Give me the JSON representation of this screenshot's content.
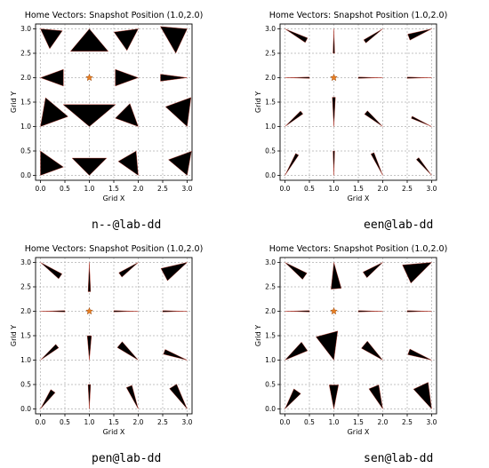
{
  "chart_data": [
    {
      "type": "quiver",
      "title": "Home Vectors: Snapshot Position (1.0,2.0)",
      "xlabel": "Grid X",
      "ylabel": "Grid Y",
      "xlim": [
        -0.1,
        3.1
      ],
      "ylim": [
        -0.1,
        3.1
      ],
      "xticks": [
        "0.0",
        "0.5",
        "1.0",
        "1.5",
        "2.0",
        "2.5",
        "3.0"
      ],
      "yticks": [
        "0.0",
        "0.5",
        "1.0",
        "1.5",
        "2.0",
        "2.5",
        "3.0"
      ],
      "grid": true,
      "caption": "n--@lab-dd",
      "snapshot": [
        1.0,
        2.0
      ],
      "points": [
        [
          0,
          0
        ],
        [
          0,
          1
        ],
        [
          0,
          2
        ],
        [
          0,
          3
        ],
        [
          1,
          0
        ],
        [
          1,
          1
        ],
        [
          1,
          3
        ],
        [
          2,
          0
        ],
        [
          2,
          1
        ],
        [
          2,
          2
        ],
        [
          2,
          3
        ],
        [
          3,
          0
        ],
        [
          3,
          1
        ],
        [
          3,
          2
        ],
        [
          3,
          3
        ]
      ],
      "fans": [
        {
          "x": 0,
          "y": 3,
          "a": -35,
          "s": 60,
          "l": 0.45
        },
        {
          "x": 1,
          "y": 3,
          "a": -90,
          "s": 80,
          "l": 0.6
        },
        {
          "x": 2,
          "y": 3,
          "a": -145,
          "s": 55,
          "l": 0.5
        },
        {
          "x": 3,
          "y": 3,
          "a": -150,
          "s": 70,
          "l": 0.55
        },
        {
          "x": 0,
          "y": 2,
          "a": 0,
          "s": 40,
          "l": 0.5
        },
        {
          "x": 2,
          "y": 2,
          "a": 180,
          "s": 40,
          "l": 0.5
        },
        {
          "x": 3,
          "y": 2,
          "a": 180,
          "s": 15,
          "l": 0.55
        },
        {
          "x": 0,
          "y": 1,
          "a": 50,
          "s": 60,
          "l": 0.6
        },
        {
          "x": 1,
          "y": 1,
          "a": 90,
          "s": 100,
          "l": 0.7
        },
        {
          "x": 2,
          "y": 1,
          "a": 135,
          "s": 50,
          "l": 0.5
        },
        {
          "x": 3,
          "y": 1,
          "a": 110,
          "s": 55,
          "l": 0.6
        },
        {
          "x": 0,
          "y": 0,
          "a": 55,
          "s": 70,
          "l": 0.5
        },
        {
          "x": 1,
          "y": 0,
          "a": 90,
          "s": 90,
          "l": 0.5
        },
        {
          "x": 2,
          "y": 0,
          "a": 120,
          "s": 50,
          "l": 0.5
        },
        {
          "x": 3,
          "y": 0,
          "a": 110,
          "s": 60,
          "l": 0.5
        }
      ]
    },
    {
      "type": "quiver",
      "title": "Home Vectors: Snapshot Position (1.0,2.0)",
      "xlabel": "Grid X",
      "ylabel": "Grid Y",
      "xlim": [
        -0.1,
        3.1
      ],
      "ylim": [
        -0.1,
        3.1
      ],
      "xticks": [
        "0.0",
        "0.5",
        "1.0",
        "1.5",
        "2.0",
        "2.5",
        "3.0"
      ],
      "yticks": [
        "0.0",
        "0.5",
        "1.0",
        "1.5",
        "2.0",
        "2.5",
        "3.0"
      ],
      "grid": true,
      "caption": "een@lab-dd",
      "snapshot": [
        1.0,
        2.0
      ],
      "fans": [
        {
          "x": 0,
          "y": 3,
          "a": -28,
          "s": 12,
          "l": 0.5
        },
        {
          "x": 1,
          "y": 3,
          "a": -90,
          "s": 4,
          "l": 0.5
        },
        {
          "x": 2,
          "y": 3,
          "a": -145,
          "s": 10,
          "l": 0.45
        },
        {
          "x": 3,
          "y": 3,
          "a": -160,
          "s": 15,
          "l": 0.5
        },
        {
          "x": 0,
          "y": 2,
          "a": 0,
          "s": 3,
          "l": 0.5
        },
        {
          "x": 2,
          "y": 2,
          "a": 180,
          "s": 3,
          "l": 0.5
        },
        {
          "x": 3,
          "y": 2,
          "a": 180,
          "s": 3,
          "l": 0.5
        },
        {
          "x": 0,
          "y": 1,
          "a": 40,
          "s": 10,
          "l": 0.45
        },
        {
          "x": 1,
          "y": 1,
          "a": 90,
          "s": 6,
          "l": 0.6
        },
        {
          "x": 2,
          "y": 1,
          "a": 140,
          "s": 12,
          "l": 0.45
        },
        {
          "x": 3,
          "y": 1,
          "a": 155,
          "s": 6,
          "l": 0.45
        },
        {
          "x": 0,
          "y": 0,
          "a": 60,
          "s": 8,
          "l": 0.5
        },
        {
          "x": 1,
          "y": 0,
          "a": 90,
          "s": 4,
          "l": 0.5
        },
        {
          "x": 2,
          "y": 0,
          "a": 115,
          "s": 8,
          "l": 0.5
        },
        {
          "x": 3,
          "y": 0,
          "a": 130,
          "s": 8,
          "l": 0.45
        }
      ]
    },
    {
      "type": "quiver",
      "title": "Home Vectors: Snapshot Position (1.0,2.0)",
      "xlabel": "Grid X",
      "ylabel": "Grid Y",
      "xlim": [
        -0.1,
        3.1
      ],
      "ylim": [
        -0.1,
        3.1
      ],
      "xticks": [
        "0.0",
        "0.5",
        "1.0",
        "1.5",
        "2.0",
        "2.5",
        "3.0"
      ],
      "yticks": [
        "0.0",
        "0.5",
        "1.0",
        "1.5",
        "2.0",
        "2.5",
        "3.0"
      ],
      "grid": true,
      "caption": "pen@lab-dd",
      "snapshot": [
        1.0,
        2.0
      ],
      "fans": [
        {
          "x": 0,
          "y": 3,
          "a": -35,
          "s": 14,
          "l": 0.5
        },
        {
          "x": 1,
          "y": 3,
          "a": -90,
          "s": 5,
          "l": 0.6
        },
        {
          "x": 2,
          "y": 3,
          "a": -145,
          "s": 14,
          "l": 0.45
        },
        {
          "x": 3,
          "y": 3,
          "a": -152,
          "s": 30,
          "l": 0.55
        },
        {
          "x": 0,
          "y": 2,
          "a": 0,
          "s": 3,
          "l": 0.5
        },
        {
          "x": 2,
          "y": 2,
          "a": 180,
          "s": 3,
          "l": 0.5
        },
        {
          "x": 3,
          "y": 2,
          "a": 180,
          "s": 3,
          "l": 0.5
        },
        {
          "x": 0,
          "y": 1,
          "a": 40,
          "s": 12,
          "l": 0.45
        },
        {
          "x": 1,
          "y": 1,
          "a": 90,
          "s": 10,
          "l": 0.5
        },
        {
          "x": 2,
          "y": 1,
          "a": 140,
          "s": 18,
          "l": 0.5
        },
        {
          "x": 3,
          "y": 1,
          "a": 160,
          "s": 12,
          "l": 0.5
        },
        {
          "x": 0,
          "y": 0,
          "a": 55,
          "s": 14,
          "l": 0.45
        },
        {
          "x": 1,
          "y": 0,
          "a": 90,
          "s": 6,
          "l": 0.5
        },
        {
          "x": 2,
          "y": 0,
          "a": 112,
          "s": 14,
          "l": 0.5
        },
        {
          "x": 3,
          "y": 0,
          "a": 122,
          "s": 18,
          "l": 0.55
        }
      ]
    },
    {
      "type": "quiver",
      "title": "Home Vectors: Snapshot Position (1.0,2.0)",
      "xlabel": "Grid X",
      "ylabel": "Grid Y",
      "xlim": [
        -0.1,
        3.1
      ],
      "ylim": [
        -0.1,
        3.1
      ],
      "xticks": [
        "0.0",
        "0.5",
        "1.0",
        "1.5",
        "2.0",
        "2.5",
        "3.0"
      ],
      "yticks": [
        "0.0",
        "0.5",
        "1.0",
        "1.5",
        "2.0",
        "2.5",
        "3.0"
      ],
      "grid": true,
      "caption": "sen@lab-dd",
      "snapshot": [
        1.0,
        2.0
      ],
      "fans": [
        {
          "x": 0,
          "y": 3,
          "a": -35,
          "s": 18,
          "l": 0.5
        },
        {
          "x": 1,
          "y": 3,
          "a": -85,
          "s": 22,
          "l": 0.55
        },
        {
          "x": 2,
          "y": 3,
          "a": -145,
          "s": 18,
          "l": 0.45
        },
        {
          "x": 3,
          "y": 3,
          "a": -155,
          "s": 40,
          "l": 0.6
        },
        {
          "x": 0,
          "y": 2,
          "a": 0,
          "s": 3,
          "l": 0.5
        },
        {
          "x": 2,
          "y": 2,
          "a": 180,
          "s": 3,
          "l": 0.5
        },
        {
          "x": 3,
          "y": 2,
          "a": 180,
          "s": 3,
          "l": 0.5
        },
        {
          "x": 0,
          "y": 1,
          "a": 35,
          "s": 25,
          "l": 0.5
        },
        {
          "x": 1,
          "y": 1,
          "a": 105,
          "s": 45,
          "l": 0.6
        },
        {
          "x": 2,
          "y": 1,
          "a": 140,
          "s": 22,
          "l": 0.5
        },
        {
          "x": 3,
          "y": 1,
          "a": 160,
          "s": 14,
          "l": 0.5
        },
        {
          "x": 0,
          "y": 0,
          "a": 55,
          "s": 22,
          "l": 0.45
        },
        {
          "x": 1,
          "y": 0,
          "a": 90,
          "s": 22,
          "l": 0.5
        },
        {
          "x": 2,
          "y": 0,
          "a": 112,
          "s": 25,
          "l": 0.5
        },
        {
          "x": 3,
          "y": 0,
          "a": 115,
          "s": 35,
          "l": 0.55
        }
      ]
    }
  ],
  "colors": {
    "arrow": "#000000",
    "arrow_edge": "#c0392b",
    "grid": "#b0b0b0",
    "snapshot_marker": "#e67e22"
  }
}
